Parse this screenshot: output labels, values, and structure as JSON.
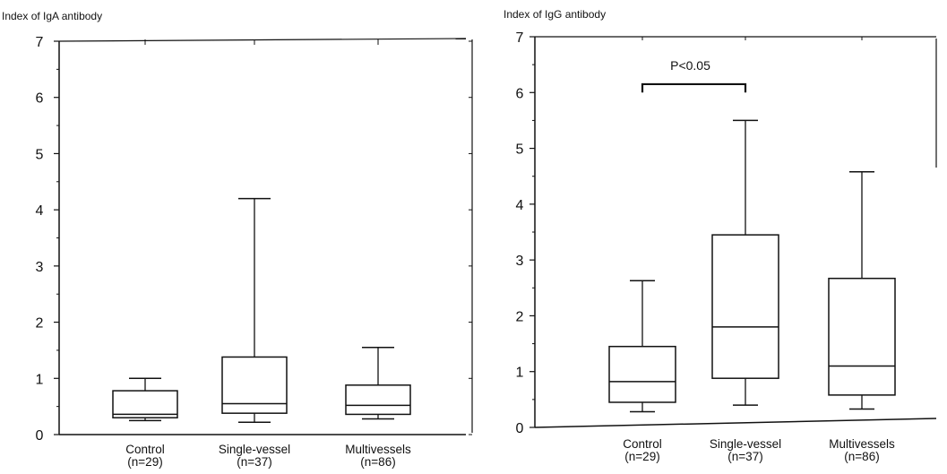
{
  "chart_data": [
    {
      "type": "box",
      "ylabel": "Index of IgA antibody",
      "ylim": [
        0,
        7
      ],
      "yticks": [
        "0",
        "1",
        "2",
        "3",
        "4",
        "5",
        "6",
        "7"
      ],
      "categories": [
        {
          "label": "Control",
          "n": "(n=29)",
          "min": 0.25,
          "q1": 0.3,
          "median": 0.36,
          "q3": 0.78,
          "max": 1.0
        },
        {
          "label": "Single-vessel",
          "n": "(n=37)",
          "min": 0.22,
          "q1": 0.38,
          "median": 0.55,
          "q3": 1.38,
          "max": 4.2
        },
        {
          "label": "Multivessels",
          "n": "(n=86)",
          "min": 0.28,
          "q1": 0.36,
          "median": 0.52,
          "q3": 0.88,
          "max": 1.55
        }
      ]
    },
    {
      "type": "box",
      "ylabel": "Index of IgG antibody",
      "ylim": [
        0,
        7
      ],
      "yticks": [
        "0",
        "1",
        "2",
        "3",
        "4",
        "5",
        "6",
        "7"
      ],
      "categories": [
        {
          "label": "Control",
          "n": "(n=29)",
          "min": 0.28,
          "q1": 0.45,
          "median": 0.82,
          "q3": 1.45,
          "max": 2.63
        },
        {
          "label": "Single-vessel",
          "n": "(n=37)",
          "min": 0.4,
          "q1": 0.88,
          "median": 1.8,
          "q3": 3.45,
          "max": 5.5
        },
        {
          "label": "Multivessels",
          "n": "(n=86)",
          "min": 0.33,
          "q1": 0.58,
          "median": 1.1,
          "q3": 2.67,
          "max": 4.58
        }
      ],
      "annotation": {
        "text": "P<0.05",
        "from": "Control",
        "to": "Single-vessel",
        "y": 6.15,
        "drop": 0.15
      }
    }
  ]
}
